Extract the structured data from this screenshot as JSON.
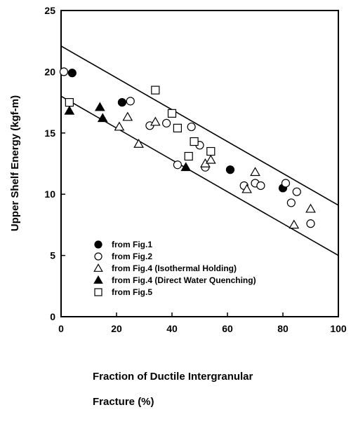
{
  "chart_data": {
    "type": "scatter",
    "xlabel_lines": [
      "Fraction of Ductile Intergranular",
      "Fracture (%)"
    ],
    "ylabel": "Upper Shelf Energy (kgf-m)",
    "xlim": [
      0,
      100
    ],
    "ylim": [
      0,
      25
    ],
    "x_ticks": [
      0,
      20,
      40,
      60,
      80,
      100
    ],
    "y_ticks": [
      0,
      5,
      10,
      15,
      20,
      25
    ],
    "grid": false,
    "legend_position": "lower-left",
    "series": [
      {
        "name": "from Fig.1",
        "marker": "circle-filled",
        "points": [
          [
            4,
            19.9
          ],
          [
            22,
            17.5
          ],
          [
            61,
            12.0
          ],
          [
            80,
            10.5
          ]
        ]
      },
      {
        "name": "from Fig.2",
        "marker": "circle-open",
        "points": [
          [
            1,
            20.0
          ],
          [
            25,
            17.6
          ],
          [
            32,
            15.6
          ],
          [
            38,
            15.8
          ],
          [
            42,
            12.4
          ],
          [
            47,
            15.5
          ],
          [
            50,
            14.0
          ],
          [
            52,
            12.2
          ],
          [
            66,
            10.7
          ],
          [
            70,
            10.9
          ],
          [
            72,
            10.7
          ],
          [
            81,
            10.9
          ],
          [
            83,
            9.3
          ],
          [
            85,
            10.2
          ],
          [
            90,
            7.6
          ]
        ]
      },
      {
        "name": "from Fig.4 (Isothermal Holding)",
        "marker": "triangle-open",
        "points": [
          [
            21,
            15.5
          ],
          [
            24,
            16.3
          ],
          [
            28,
            14.1
          ],
          [
            34,
            15.9
          ],
          [
            52,
            12.5
          ],
          [
            54,
            12.8
          ],
          [
            67,
            10.4
          ],
          [
            70,
            11.8
          ],
          [
            84,
            7.5
          ],
          [
            90,
            8.8
          ]
        ]
      },
      {
        "name": "from Fig.4 (Direct Water Quenching)",
        "marker": "triangle-filled",
        "points": [
          [
            3,
            16.8
          ],
          [
            14,
            17.1
          ],
          [
            15,
            16.2
          ],
          [
            45,
            12.2
          ]
        ]
      },
      {
        "name": "from Fig.5",
        "marker": "square-open",
        "points": [
          [
            3,
            17.5
          ],
          [
            34,
            18.5
          ],
          [
            40,
            16.6
          ],
          [
            42,
            15.4
          ],
          [
            46,
            13.1
          ],
          [
            48,
            14.3
          ],
          [
            54,
            13.5
          ]
        ]
      }
    ],
    "band_lines": [
      {
        "from": [
          0,
          22.1
        ],
        "to": [
          100,
          9.1
        ]
      },
      {
        "from": [
          0,
          18.0
        ],
        "to": [
          100,
          5.0
        ]
      }
    ],
    "legend_entries": [
      {
        "marker": "circle-filled",
        "label": "from Fig.1"
      },
      {
        "marker": "circle-open",
        "label": "from Fig.2"
      },
      {
        "marker": "triangle-open",
        "label": "from Fig.4 (Isothermal Holding)"
      },
      {
        "marker": "triangle-filled",
        "label": "from Fig.4 (Direct Water Quenching)"
      },
      {
        "marker": "square-open",
        "label": "from Fig.5"
      }
    ]
  }
}
